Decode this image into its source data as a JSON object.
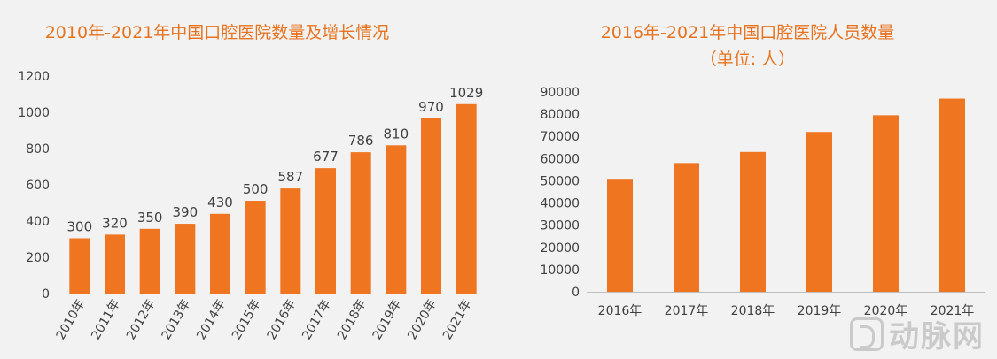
{
  "chart_data": [
    {
      "type": "bar",
      "title": "2010年-2021年中国口腔医院数量及增长情况",
      "categories": [
        "2010年",
        "2011年",
        "2012年",
        "2013年",
        "2014年",
        "2015年",
        "2016年",
        "2017年",
        "2018年",
        "2019年",
        "2020年",
        "2021年"
      ],
      "values": [
        300,
        320,
        350,
        390,
        430,
        500,
        587,
        677,
        786,
        810,
        970,
        1029
      ],
      "data_labels": [
        "300",
        "320",
        "350",
        "390",
        "430",
        "500",
        "587",
        "677",
        "786",
        "810",
        "970",
        "1029"
      ],
      "bar_values": [
        305,
        325,
        357,
        385,
        440,
        512,
        580,
        692,
        780,
        818,
        967,
        1045
      ],
      "ylim": [
        0,
        1200
      ],
      "yticks": [
        "0",
        "200",
        "400",
        "600",
        "800",
        "1000",
        "1200"
      ],
      "color": "#f07520"
    },
    {
      "type": "bar",
      "title": "2016年-2021年中国口腔医院人员数量",
      "subtitle": "（单位: 人）",
      "categories": [
        "2016年",
        "2017年",
        "2018年",
        "2019年",
        "2020年",
        "2021年"
      ],
      "values": [
        50500,
        58000,
        63000,
        72000,
        79500,
        87000
      ],
      "ylim": [
        0,
        90000
      ],
      "yticks": [
        "0",
        "10000",
        "20000",
        "30000",
        "40000",
        "50000",
        "60000",
        "70000",
        "80000",
        "90000"
      ],
      "color": "#f07520"
    }
  ],
  "watermark": {
    "text": "动脉网"
  }
}
